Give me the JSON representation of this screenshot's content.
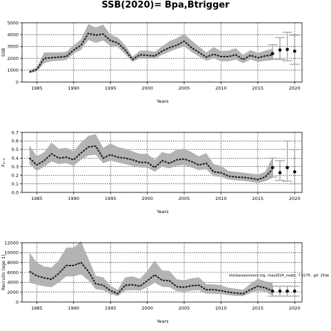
{
  "title": "SSB(2020)= Bpa,Btrigger",
  "colors": {
    "band": "#b3b3b3",
    "line": "#1a1a1a",
    "interval": "#a8a8a8",
    "point": "#000000",
    "grid": "#000000"
  },
  "chart_data": [
    {
      "type": "line",
      "xlabel": "Years",
      "ylabel": "SSB",
      "xlim": [
        1983,
        2021
      ],
      "ylim": [
        0,
        5000
      ],
      "xticks": [
        1985,
        1990,
        1995,
        2000,
        2005,
        2010,
        2015,
        2020
      ],
      "yticks": [
        0,
        1000,
        2000,
        3000,
        4000,
        5000
      ],
      "grid": true,
      "x": [
        1984,
        1985,
        1986,
        1987,
        1988,
        1989,
        1990,
        1991,
        1992,
        1993,
        1994,
        1995,
        1996,
        1997,
        1998,
        1999,
        2000,
        2001,
        2002,
        2003,
        2004,
        2005,
        2006,
        2007,
        2008,
        2009,
        2010,
        2011,
        2012,
        2013,
        2014,
        2015,
        2016,
        2017
      ],
      "estimate": [
        850,
        1050,
        2000,
        2050,
        2100,
        2150,
        2700,
        3100,
        4100,
        3950,
        4050,
        3500,
        3300,
        2700,
        1900,
        2300,
        2250,
        2200,
        2600,
        2900,
        3100,
        3450,
        2900,
        2500,
        2100,
        2350,
        2150,
        2150,
        2300,
        1900,
        2250,
        2050,
        2200,
        2300
      ],
      "lower": [
        750,
        900,
        1600,
        1750,
        1800,
        1850,
        2400,
        2700,
        3550,
        3300,
        3500,
        3050,
        2950,
        2350,
        1700,
        2000,
        2000,
        1950,
        2300,
        2550,
        2800,
        3000,
        2550,
        2150,
        1800,
        2000,
        1750,
        1750,
        1900,
        1600,
        1900,
        1700,
        1800,
        1850
      ],
      "upper": [
        1000,
        1250,
        2500,
        2500,
        2500,
        2550,
        3100,
        3600,
        4900,
        4600,
        4850,
        4000,
        3750,
        3100,
        2150,
        2650,
        2650,
        2550,
        3000,
        3450,
        3700,
        4050,
        3500,
        3000,
        2500,
        2950,
        2600,
        2650,
        2850,
        2300,
        2700,
        2450,
        2650,
        2800
      ],
      "forecast": {
        "x": [
          2017,
          2018,
          2019,
          2020
        ],
        "value": [
          2400,
          2700,
          2750,
          2600
        ],
        "lower": [
          1900,
          1900,
          1800,
          1500
        ],
        "upper": [
          3150,
          3750,
          4200,
          3950
        ]
      }
    },
    {
      "type": "line",
      "xlabel": "Years",
      "ylabel": "F₄₋₈",
      "xlim": [
        1983,
        2021
      ],
      "ylim": [
        0,
        0.7
      ],
      "xticks": [
        1985,
        1990,
        1995,
        2000,
        2005,
        2010,
        2015,
        2020
      ],
      "yticks": [
        "0.0",
        "0.1",
        "0.2",
        "0.3",
        "0.4",
        "0.5",
        "0.6",
        "0.7"
      ],
      "grid": true,
      "x": [
        1984,
        1985,
        1986,
        1987,
        1988,
        1989,
        1990,
        1991,
        1992,
        1993,
        1994,
        1995,
        1996,
        1997,
        1998,
        1999,
        2000,
        2001,
        2002,
        2003,
        2004,
        2005,
        2006,
        2007,
        2008,
        2009,
        2010,
        2011,
        2012,
        2013,
        2014,
        2015,
        2016,
        2017
      ],
      "estimate": [
        0.4,
        0.32,
        0.37,
        0.45,
        0.4,
        0.41,
        0.38,
        0.46,
        0.53,
        0.54,
        0.4,
        0.44,
        0.41,
        0.4,
        0.38,
        0.35,
        0.35,
        0.29,
        0.37,
        0.34,
        0.38,
        0.39,
        0.36,
        0.32,
        0.34,
        0.24,
        0.23,
        0.19,
        0.18,
        0.175,
        0.165,
        0.15,
        0.18,
        0.27
      ],
      "lower": [
        0.33,
        0.25,
        0.3,
        0.36,
        0.33,
        0.34,
        0.31,
        0.38,
        0.43,
        0.44,
        0.34,
        0.37,
        0.35,
        0.33,
        0.31,
        0.29,
        0.29,
        0.24,
        0.3,
        0.28,
        0.31,
        0.32,
        0.29,
        0.26,
        0.27,
        0.19,
        0.18,
        0.15,
        0.14,
        0.135,
        0.125,
        0.11,
        0.13,
        0.17
      ],
      "upper": [
        0.55,
        0.42,
        0.47,
        0.58,
        0.51,
        0.52,
        0.48,
        0.58,
        0.66,
        0.68,
        0.52,
        0.57,
        0.53,
        0.51,
        0.48,
        0.45,
        0.45,
        0.38,
        0.47,
        0.45,
        0.5,
        0.51,
        0.47,
        0.42,
        0.46,
        0.33,
        0.31,
        0.25,
        0.24,
        0.23,
        0.22,
        0.21,
        0.24,
        0.41
      ],
      "forecast": {
        "x": [
          2017,
          2018,
          2019,
          2020
        ],
        "value": [
          0.29,
          0.23,
          0.29,
          0.24
        ],
        "lower": [
          0.18,
          0.14,
          0.13,
          0.1
        ],
        "upper": [
          0.4,
          0.37,
          0.6,
          0.5
        ]
      }
    },
    {
      "type": "line",
      "xlabel": "Years",
      "ylabel": "Recruits (age 1)",
      "xlim": [
        1983,
        2021
      ],
      "ylim": [
        0,
        12000
      ],
      "xticks": [
        1985,
        1990,
        1995,
        2000,
        2005,
        2010,
        2015,
        2020
      ],
      "yticks": [
        0,
        2000,
        4000,
        6000,
        8000,
        10000,
        12000
      ],
      "grid": true,
      "x": [
        1984,
        1985,
        1986,
        1987,
        1988,
        1989,
        1990,
        1991,
        1992,
        1993,
        1994,
        1995,
        1996,
        1997,
        1998,
        1999,
        2000,
        2001,
        2002,
        2003,
        2004,
        2005,
        2006,
        2007,
        2008,
        2009,
        2010,
        2011,
        2012,
        2013,
        2014,
        2015,
        2016,
        2017
      ],
      "estimate": [
        6200,
        5300,
        4900,
        4600,
        5800,
        7400,
        7400,
        8000,
        6200,
        3700,
        3400,
        2300,
        1700,
        3400,
        3500,
        3200,
        4300,
        5500,
        4400,
        4300,
        3100,
        3000,
        3300,
        3400,
        2500,
        2500,
        2300,
        2000,
        1800,
        1700,
        2500,
        3200,
        2900,
        2200
      ],
      "lower": [
        3900,
        3500,
        3200,
        3000,
        4000,
        5200,
        5200,
        5600,
        4400,
        2600,
        2400,
        1600,
        1200,
        2300,
        2400,
        2300,
        3000,
        3900,
        3100,
        3000,
        2200,
        2100,
        2300,
        2400,
        1700,
        1700,
        1600,
        1400,
        1250,
        1200,
        1800,
        2300,
        2100,
        1300
      ],
      "upper": [
        10000,
        8000,
        7200,
        7000,
        8500,
        11000,
        11000,
        12300,
        8800,
        5300,
        5000,
        3300,
        2500,
        5000,
        5200,
        4700,
        6300,
        8400,
        6400,
        6300,
        4600,
        4400,
        4800,
        5000,
        3600,
        3600,
        3400,
        2900,
        2700,
        2500,
        3700,
        4700,
        4200,
        4000
      ],
      "forecast": {
        "x": [
          2017,
          2018,
          2019,
          2020
        ],
        "value": [
          2200,
          2200,
          2200,
          2200
        ],
        "lower": [
          1200,
          1200,
          1200,
          1200
        ],
        "upper": [
          3200,
          3200,
          3200,
          3200
        ]
      },
      "annotation": "stockassessment.org, nsas2024_nsabc, 7.0176 , git: 25de"
    }
  ]
}
